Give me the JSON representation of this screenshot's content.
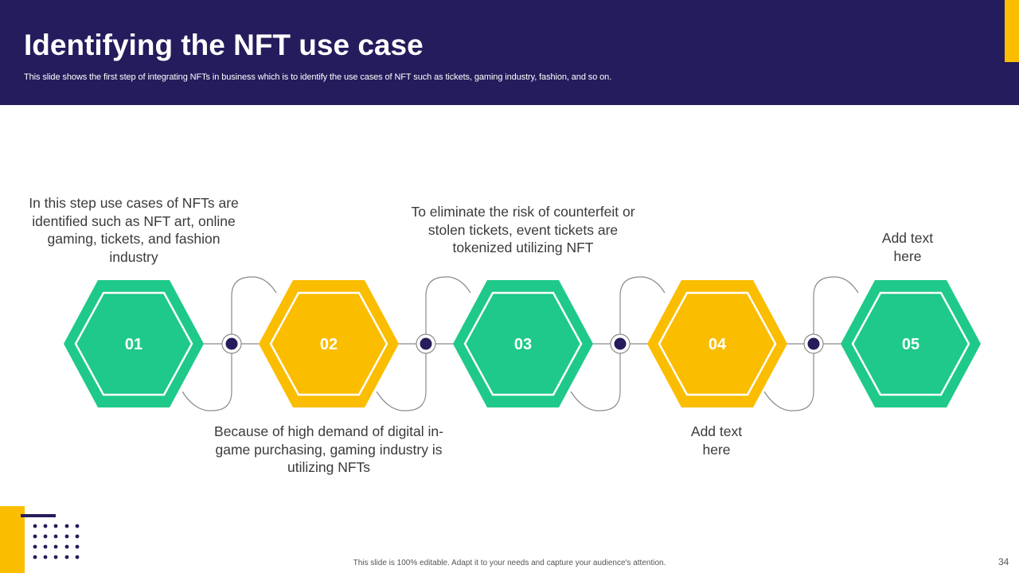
{
  "slide": {
    "title": "Identifying the NFT use case",
    "subtitle": "This slide shows the first step of integrating NFTs in business which is to identify the use cases of NFT such as tickets, gaming industry, fashion, and so on.",
    "footer_note": "This slide is 100% editable. Adapt it to your needs and capture your audience's attention.",
    "page_number": "34"
  },
  "steps": [
    {
      "number": "01",
      "color": "#1fc98a",
      "text": "In this step use cases of NFTs are identified such as NFT art, online gaming, tickets, and fashion industry"
    },
    {
      "number": "02",
      "color": "#fbbd00",
      "text": "Because of high demand of digital in-game purchasing, gaming industry is utilizing NFTs"
    },
    {
      "number": "03",
      "color": "#1fc98a",
      "text": "To eliminate the risk of counterfeit or stolen tickets, event tickets are tokenized utilizing NFT"
    },
    {
      "number": "04",
      "color": "#fbbd00",
      "text": "Add text here"
    },
    {
      "number": "05",
      "color": "#1fc98a",
      "text": "Add text here"
    }
  ],
  "colors": {
    "header_bg": "#241c5c",
    "accent_yellow": "#fbbd00",
    "accent_green": "#1fc98a",
    "node_navy": "#241c5c",
    "connector_gray": "#8a8a8a"
  }
}
